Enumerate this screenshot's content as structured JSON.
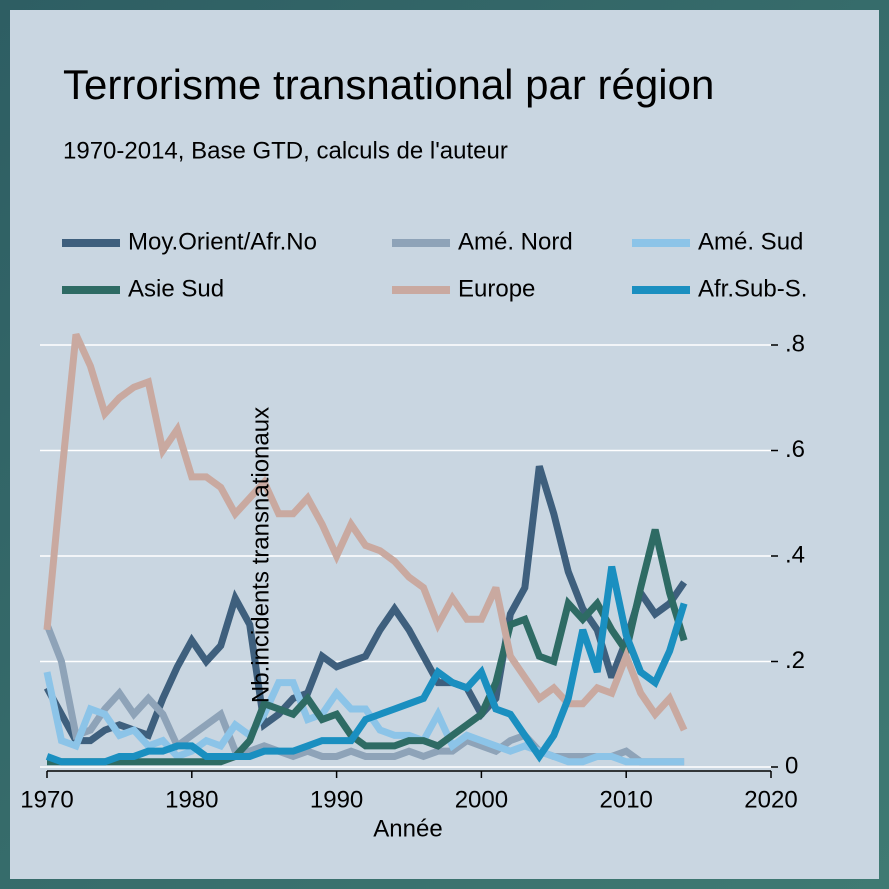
{
  "chart_data": {
    "type": "line",
    "title": "Terrorisme transnational par région",
    "subtitle": "1970-2014, Base GTD, calculs de l'auteur",
    "x_label": "Année",
    "y_label": "Nb.incidents transnationaux",
    "x": [
      1970,
      1971,
      1972,
      1973,
      1974,
      1975,
      1976,
      1977,
      1978,
      1979,
      1980,
      1981,
      1982,
      1983,
      1984,
      1985,
      1986,
      1987,
      1988,
      1989,
      1990,
      1991,
      1992,
      1993,
      1994,
      1995,
      1996,
      1997,
      1998,
      1999,
      2000,
      2001,
      2002,
      2003,
      2004,
      2005,
      2006,
      2007,
      2008,
      2009,
      2010,
      2011,
      2012,
      2013,
      2014
    ],
    "xlim": [
      1970,
      2020
    ],
    "xticks": [
      1970,
      1980,
      1990,
      2000,
      2010,
      2020
    ],
    "ylim": [
      0,
      0.8
    ],
    "yticks": [
      0,
      {
        "value": 0.2,
        "label": ".2"
      },
      {
        "value": 0.4,
        "label": ".4"
      },
      {
        "value": 0.6,
        "label": ".6"
      },
      {
        "value": 0.8,
        "label": ".8"
      }
    ],
    "grid": true,
    "legend_position": "top",
    "series": [
      {
        "name": "Moy.Orient/Afr.No",
        "color": "#3e5f7d",
        "values": [
          0.15,
          0.1,
          0.05,
          0.05,
          0.07,
          0.08,
          0.07,
          0.06,
          0.13,
          0.19,
          0.24,
          0.2,
          0.23,
          0.32,
          0.27,
          0.08,
          0.1,
          0.13,
          0.14,
          0.21,
          0.19,
          0.2,
          0.21,
          0.26,
          0.3,
          0.26,
          0.21,
          0.16,
          0.16,
          0.15,
          0.1,
          0.13,
          0.29,
          0.34,
          0.57,
          0.48,
          0.37,
          0.3,
          0.26,
          0.17,
          0.24,
          0.33,
          0.29,
          0.31,
          0.35
        ]
      },
      {
        "name": "Amé. Nord",
        "color": "#8ea3b8",
        "values": [
          0.27,
          0.2,
          0.06,
          0.07,
          0.11,
          0.14,
          0.1,
          0.13,
          0.1,
          0.04,
          0.06,
          0.08,
          0.1,
          0.03,
          0.03,
          0.04,
          0.03,
          0.02,
          0.03,
          0.02,
          0.02,
          0.03,
          0.02,
          0.02,
          0.02,
          0.03,
          0.02,
          0.03,
          0.03,
          0.05,
          0.04,
          0.03,
          0.05,
          0.06,
          0.03,
          0.02,
          0.02,
          0.02,
          0.02,
          0.02,
          0.03,
          0.01,
          0.01,
          0.01,
          0.01
        ]
      },
      {
        "name": "Amé. Sud",
        "color": "#8cc4e8",
        "values": [
          0.18,
          0.05,
          0.04,
          0.11,
          0.1,
          0.06,
          0.07,
          0.04,
          0.05,
          0.02,
          0.03,
          0.05,
          0.04,
          0.08,
          0.06,
          0.1,
          0.16,
          0.16,
          0.09,
          0.1,
          0.14,
          0.11,
          0.11,
          0.07,
          0.06,
          0.06,
          0.05,
          0.1,
          0.04,
          0.06,
          0.05,
          0.04,
          0.03,
          0.04,
          0.03,
          0.02,
          0.01,
          0.01,
          0.02,
          0.02,
          0.01,
          0.01,
          0.01,
          0.01,
          0.01
        ]
      },
      {
        "name": "Asie Sud",
        "color": "#2e6b64",
        "values": [
          0.01,
          0.01,
          0.01,
          0.01,
          0.01,
          0.01,
          0.01,
          0.01,
          0.01,
          0.01,
          0.01,
          0.01,
          0.01,
          0.02,
          0.05,
          0.12,
          0.11,
          0.1,
          0.13,
          0.09,
          0.1,
          0.06,
          0.04,
          0.04,
          0.04,
          0.05,
          0.05,
          0.04,
          0.06,
          0.08,
          0.1,
          0.16,
          0.27,
          0.28,
          0.21,
          0.2,
          0.31,
          0.28,
          0.31,
          0.26,
          0.22,
          0.34,
          0.45,
          0.33,
          0.24
        ]
      },
      {
        "name": "Europe",
        "color": "#c9a9a0",
        "values": [
          0.26,
          0.55,
          0.82,
          0.76,
          0.67,
          0.7,
          0.72,
          0.73,
          0.6,
          0.64,
          0.55,
          0.55,
          0.53,
          0.48,
          0.51,
          0.54,
          0.48,
          0.48,
          0.51,
          0.46,
          0.4,
          0.46,
          0.42,
          0.41,
          0.39,
          0.36,
          0.34,
          0.27,
          0.32,
          0.28,
          0.28,
          0.34,
          0.21,
          0.17,
          0.13,
          0.15,
          0.12,
          0.12,
          0.15,
          0.14,
          0.21,
          0.14,
          0.1,
          0.13,
          0.07
        ]
      },
      {
        "name": "Afr.Sub-S.",
        "color": "#1a8fc0",
        "values": [
          0.02,
          0.01,
          0.01,
          0.01,
          0.01,
          0.02,
          0.02,
          0.03,
          0.03,
          0.04,
          0.04,
          0.02,
          0.02,
          0.02,
          0.02,
          0.03,
          0.03,
          0.03,
          0.04,
          0.05,
          0.05,
          0.05,
          0.09,
          0.1,
          0.11,
          0.12,
          0.13,
          0.18,
          0.16,
          0.15,
          0.18,
          0.11,
          0.1,
          0.06,
          0.02,
          0.06,
          0.13,
          0.26,
          0.18,
          0.38,
          0.25,
          0.18,
          0.16,
          0.22,
          0.31
        ]
      }
    ]
  }
}
